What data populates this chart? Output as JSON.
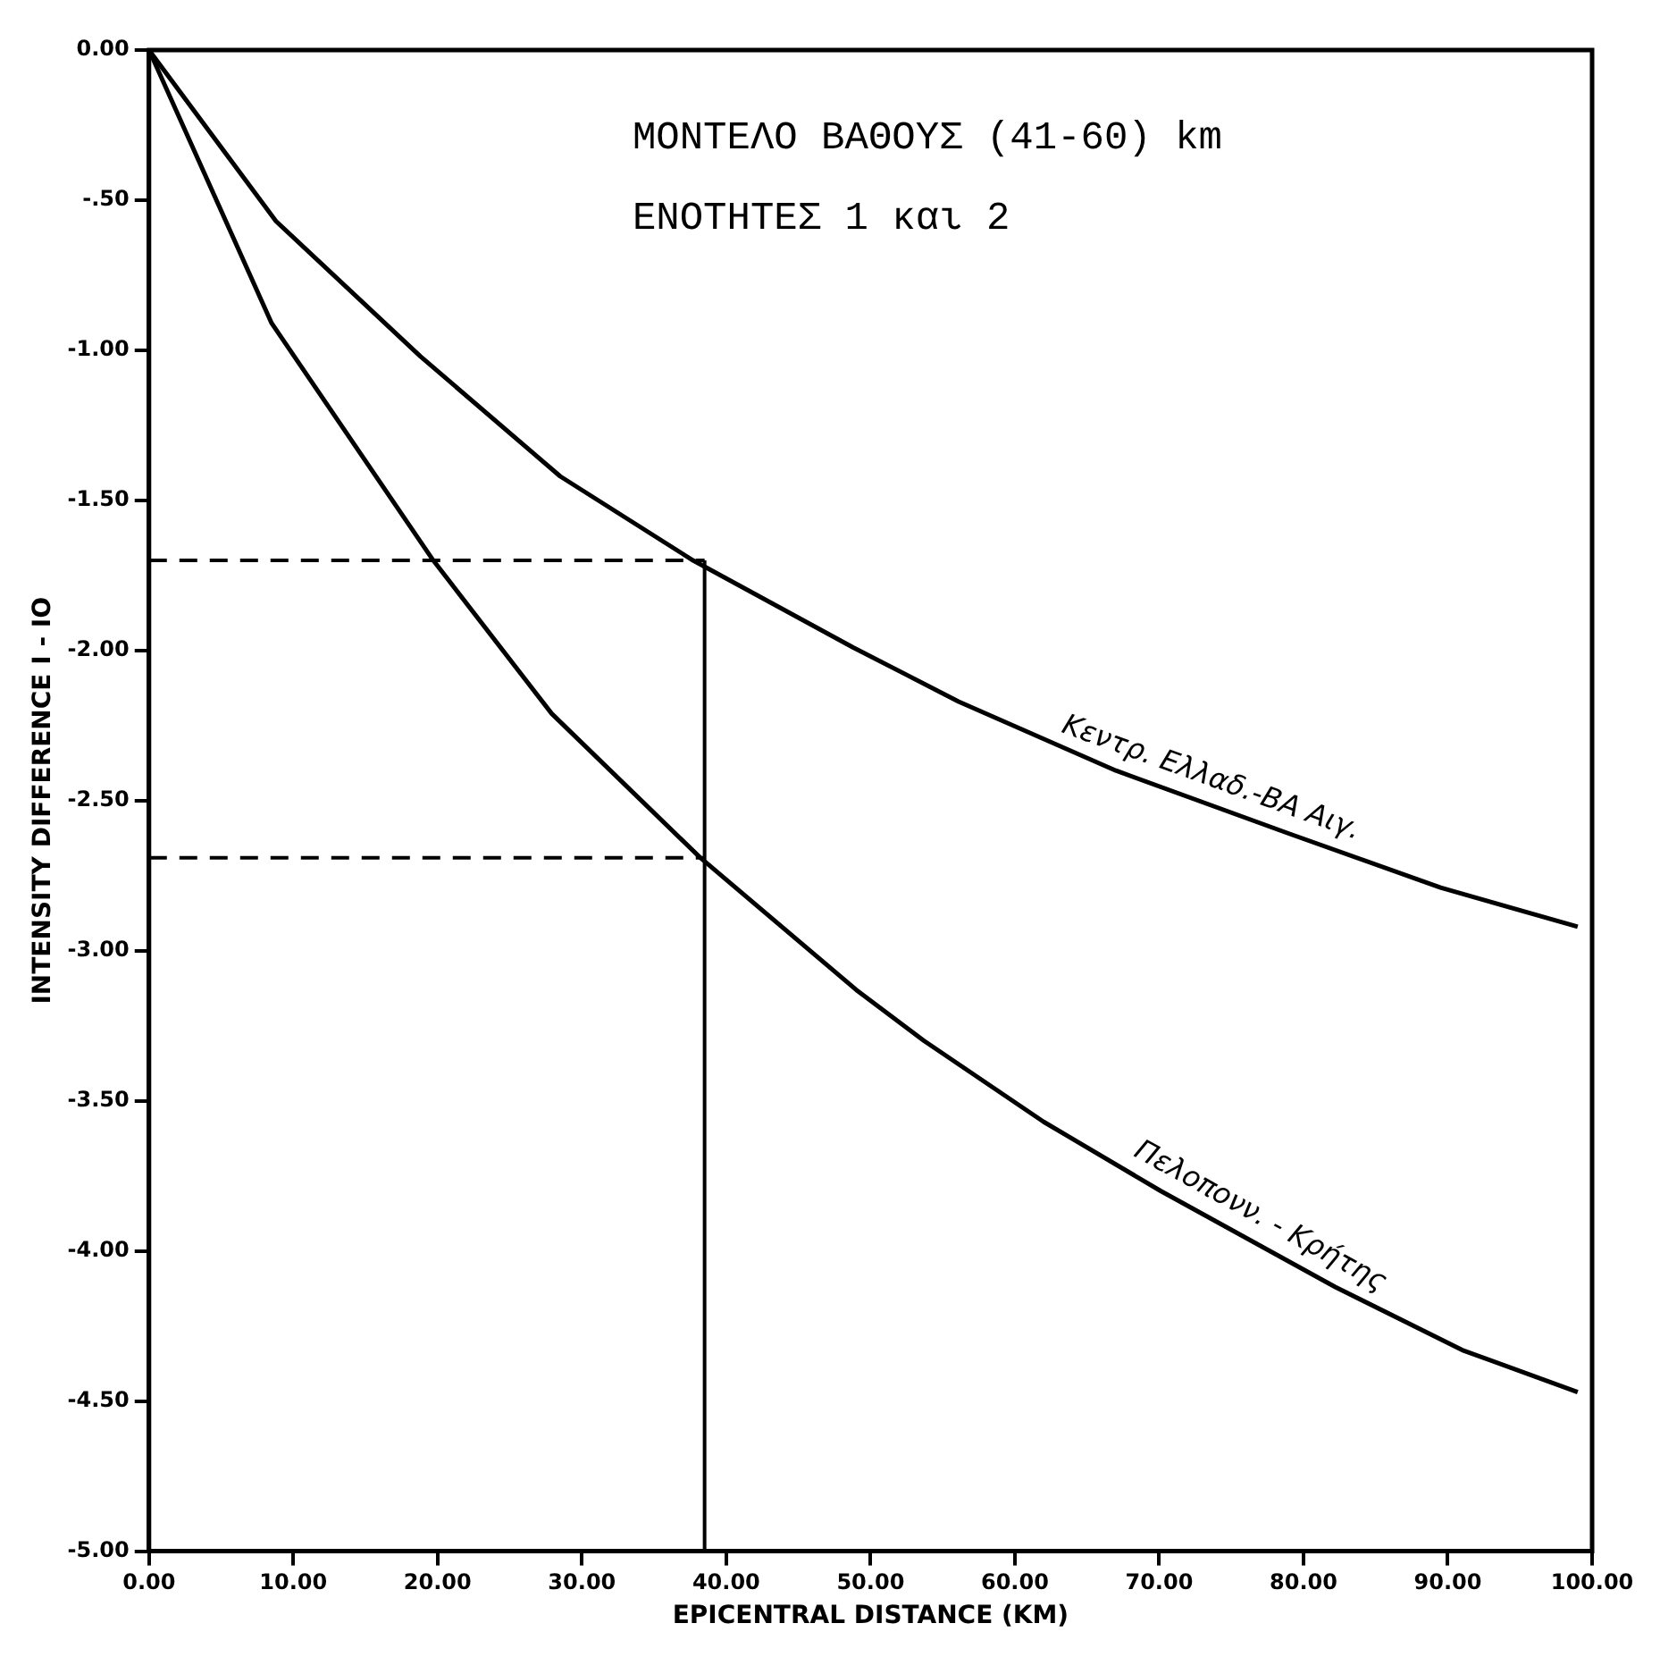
{
  "chart_data": {
    "type": "line",
    "title": "ΜΟΝΤΕΛΟ ΒΑΘΟΥΣ (41-60) km",
    "subtitle": "ΕΝΟΤΗΤΕΣ 1 και 2",
    "xlabel": "EPICENTRAL DISTANCE (KM)",
    "ylabel": "INTENSITY DIFFERENCE I - IO",
    "series": [
      {
        "name": "Κεντρ. Ελλαδ.-ΒΑ Αιγ.",
        "color": "#000000",
        "x": [
          0,
          8.8,
          18.8,
          28.5,
          37.7,
          48.8,
          56.1,
          67,
          79,
          89.5,
          99
        ],
        "values": [
          0,
          -0.57,
          -1.02,
          -1.42,
          -1.7,
          -1.99,
          -2.17,
          -2.4,
          -2.61,
          -2.79,
          -2.92
        ]
      },
      {
        "name": "Πελοπονν. - Κρήτης",
        "color": "#000000",
        "x": [
          0,
          8.5,
          19.7,
          27.9,
          38.2,
          49,
          53.7,
          62,
          70.1,
          82.2,
          91,
          99
        ],
        "values": [
          0,
          -0.91,
          -1.7,
          -2.21,
          -2.69,
          -3.13,
          -3.3,
          -3.57,
          -3.8,
          -4.12,
          -4.33,
          -4.47
        ]
      }
    ],
    "ref_lines": [
      {
        "axis": "y",
        "value": -1.7,
        "color": "#000000",
        "line_style": "dashed"
      },
      {
        "axis": "y",
        "value": -2.69,
        "color": "#000000",
        "line_style": "dashed"
      },
      {
        "axis": "x",
        "value": 38.5,
        "color": "#000000",
        "line_style": "solid"
      }
    ],
    "xlim": [
      0,
      100
    ],
    "ylim": [
      -5,
      0
    ],
    "xticks": [
      {
        "value": 0,
        "label": "0.00"
      },
      {
        "value": 10,
        "label": "10.00"
      },
      {
        "value": 20,
        "label": "20.00"
      },
      {
        "value": 30,
        "label": "30.00"
      },
      {
        "value": 40,
        "label": "40.00"
      },
      {
        "value": 50,
        "label": "50.00"
      },
      {
        "value": 60,
        "label": "60.00"
      },
      {
        "value": 70,
        "label": "70.00"
      },
      {
        "value": 80,
        "label": "80.00"
      },
      {
        "value": 90,
        "label": "90.00"
      },
      {
        "value": 100,
        "label": "100.00"
      }
    ],
    "yticks": [
      {
        "value": 0,
        "label": "0.00"
      },
      {
        "value": -0.5,
        "label": "-.50"
      },
      {
        "value": -1,
        "label": "-1.00"
      },
      {
        "value": -1.5,
        "label": "-1.50"
      },
      {
        "value": -2,
        "label": "-2.00"
      },
      {
        "value": -2.5,
        "label": "-2.50"
      },
      {
        "value": -3,
        "label": "-3.00"
      },
      {
        "value": -3.5,
        "label": "-3.50"
      },
      {
        "value": -4,
        "label": "-4.00"
      },
      {
        "value": -4.5,
        "label": "-4.50"
      },
      {
        "value": -5,
        "label": "-5.00"
      }
    ],
    "grid": false,
    "legend": false,
    "marker": "none",
    "line_style": "solid"
  }
}
